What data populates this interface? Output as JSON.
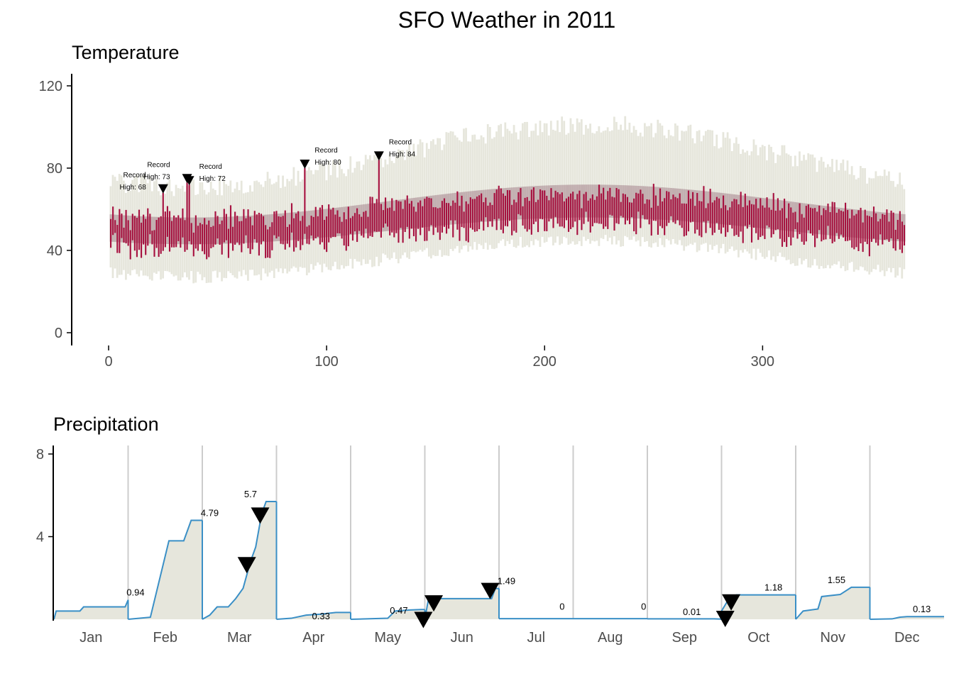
{
  "title": "SFO Weather in 2011",
  "colors": {
    "background": "#ffffff",
    "recordBand": "#e6e6dc",
    "normalBand": "#c2afb0",
    "actualBar": "#a6113f",
    "precipLine": "#3a8fc6",
    "precipFill": "#e6e6dc",
    "monthDivider": "#cccccc",
    "axis": "#000000",
    "marker": "#000000"
  },
  "temperature": {
    "title": "Temperature",
    "type": "bar",
    "x_ticks": [
      "0",
      "100",
      "200",
      "300"
    ],
    "y_ticks": [
      "0",
      "40",
      "80",
      "120"
    ],
    "xlim": [
      0,
      365
    ],
    "ylim": [
      0,
      120
    ],
    "series_description": {
      "record_low_start": 30,
      "record_low_peak": 48,
      "record_high_start": 66,
      "record_high_peak": 96,
      "normal_low_start": 43,
      "normal_low_peak": 56,
      "normal_high_start": 56,
      "normal_high_peak": 72,
      "peak_day": 220
    },
    "record_highs": [
      {
        "day": 25,
        "value": 68,
        "line1": "Record",
        "line2": "High: 68"
      },
      {
        "day": 36,
        "value": 73,
        "line1": "Record",
        "line2": "High: 73"
      },
      {
        "day": 37,
        "value": 72,
        "line1": "Record",
        "line2": "High: 72"
      },
      {
        "day": 90,
        "value": 80,
        "line1": "Record",
        "line2": "High: 80"
      },
      {
        "day": 124,
        "value": 84,
        "line1": "Record",
        "line2": "High: 84"
      }
    ]
  },
  "precipitation": {
    "title": "Precipitation",
    "type": "area",
    "y_ticks": [
      "4",
      "8"
    ],
    "ylim": [
      0,
      8
    ],
    "months": [
      {
        "name": "Jan",
        "points": [
          [
            0,
            0
          ],
          [
            0.03,
            0.4
          ],
          [
            0.35,
            0.4
          ],
          [
            0.4,
            0.6
          ],
          [
            0.96,
            0.6
          ],
          [
            1,
            0.94
          ]
        ],
        "total": "0.94",
        "label_at": [
          1.1,
          0.94
        ],
        "markers": []
      },
      {
        "name": "Feb",
        "points": [
          [
            0,
            0
          ],
          [
            0.3,
            0.1
          ],
          [
            0.55,
            3.8
          ],
          [
            0.75,
            3.8
          ],
          [
            0.85,
            4.79
          ],
          [
            1,
            4.79
          ]
        ],
        "total": "4.79",
        "label_at": [
          1.1,
          4.79
        ],
        "markers": []
      },
      {
        "name": "Mar",
        "points": [
          [
            0,
            0
          ],
          [
            0.1,
            0.2
          ],
          [
            0.2,
            0.6
          ],
          [
            0.35,
            0.6
          ],
          [
            0.45,
            1.0
          ],
          [
            0.55,
            1.5
          ],
          [
            0.65,
            2.8
          ],
          [
            0.72,
            3.5
          ],
          [
            0.8,
            5.1
          ],
          [
            0.86,
            5.7
          ],
          [
            1,
            5.7
          ]
        ],
        "total": "5.7",
        "label_at": [
          0.65,
          5.7
        ],
        "markers": [
          [
            0.6,
            2.6
          ],
          [
            0.78,
            5.0
          ]
        ]
      },
      {
        "name": "Apr",
        "points": [
          [
            0,
            0
          ],
          [
            0.2,
            0.05
          ],
          [
            0.4,
            0.2
          ],
          [
            0.6,
            0.25
          ],
          [
            0.8,
            0.33
          ],
          [
            1,
            0.33
          ]
        ],
        "total": "0.33",
        "label_at": [
          0.6,
          -0.2
        ],
        "markers": []
      },
      {
        "name": "May",
        "points": [
          [
            0,
            0
          ],
          [
            0.5,
            0.05
          ],
          [
            0.6,
            0.4
          ],
          [
            0.8,
            0.45
          ],
          [
            0.95,
            0.47
          ],
          [
            1,
            0.47
          ]
        ],
        "total": "0.47",
        "label_at": [
          0.65,
          0.07
        ],
        "markers": [
          [
            0.98,
            -0.05
          ]
        ]
      },
      {
        "name": "Jun",
        "points": [
          [
            0,
            0
          ],
          [
            0.05,
            1.0
          ],
          [
            0.9,
            1.0
          ],
          [
            0.95,
            1.49
          ],
          [
            1,
            1.49
          ]
        ],
        "total": "1.49",
        "label_at": [
          1.1,
          1.49
        ],
        "markers": [
          [
            0.12,
            0.75
          ],
          [
            0.88,
            1.35
          ]
        ]
      },
      {
        "name": "Jul",
        "points": [
          [
            0,
            0.03
          ],
          [
            1,
            0.03
          ]
        ],
        "total": "0",
        "label_at": [
          0.85,
          0.25
        ],
        "markers": []
      },
      {
        "name": "Aug",
        "points": [
          [
            0,
            0.03
          ],
          [
            1,
            0.03
          ]
        ],
        "total": "0",
        "label_at": [
          0.95,
          0.25
        ],
        "markers": []
      },
      {
        "name": "Sep",
        "points": [
          [
            0,
            0.02
          ],
          [
            0.9,
            0.02
          ],
          [
            1,
            0.01
          ]
        ],
        "total": "0.01",
        "label_at": [
          0.6,
          0.0
        ],
        "markers": [
          [
            1.05,
            0.0
          ]
        ]
      },
      {
        "name": "Oct",
        "points": [
          [
            0,
            0.4
          ],
          [
            0.1,
            1.0
          ],
          [
            0.2,
            1.18
          ],
          [
            1,
            1.18
          ]
        ],
        "total": "1.18",
        "label_at": [
          0.7,
          1.18
        ],
        "markers": [
          [
            0.13,
            0.8
          ]
        ]
      },
      {
        "name": "Nov",
        "points": [
          [
            0,
            0
          ],
          [
            0.1,
            0.4
          ],
          [
            0.3,
            0.5
          ],
          [
            0.35,
            1.1
          ],
          [
            0.6,
            1.2
          ],
          [
            0.75,
            1.55
          ],
          [
            0.9,
            1.55
          ],
          [
            1,
            1.55
          ]
        ],
        "total": "1.55",
        "label_at": [
          0.55,
          1.55
        ],
        "markers": []
      },
      {
        "name": "Dec",
        "points": [
          [
            0,
            0
          ],
          [
            0.3,
            0.02
          ],
          [
            0.4,
            0.1
          ],
          [
            0.5,
            0.13
          ],
          [
            1,
            0.13
          ]
        ],
        "total": "0.13",
        "label_at": [
          0.7,
          0.13
        ],
        "markers": []
      }
    ]
  }
}
